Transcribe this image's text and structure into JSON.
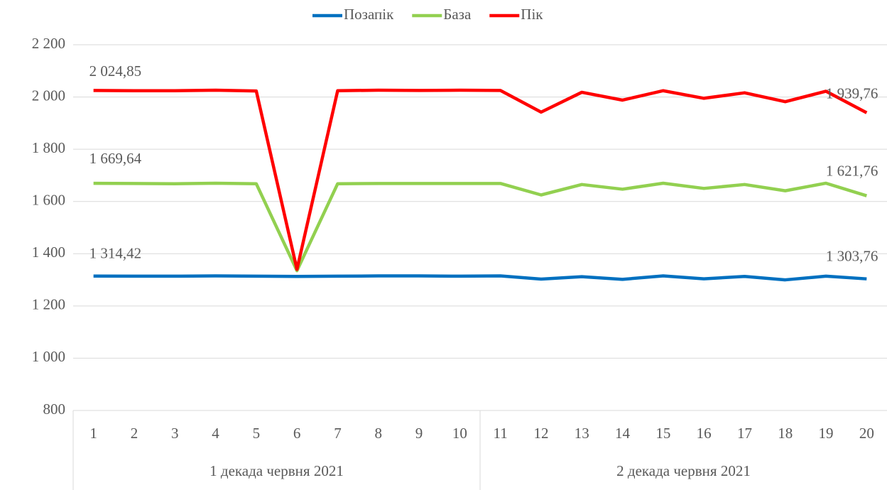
{
  "chart_data": {
    "type": "line",
    "categories": [
      "1",
      "2",
      "3",
      "4",
      "5",
      "6",
      "7",
      "8",
      "9",
      "10",
      "11",
      "12",
      "13",
      "14",
      "15",
      "16",
      "17",
      "18",
      "19",
      "20"
    ],
    "groups": [
      {
        "label": "1 декада червня 2021",
        "count": 10
      },
      {
        "label": "2 декада червня 2021",
        "count": 10
      }
    ],
    "series": [
      {
        "name": "Позапік",
        "color": "#0070c0",
        "values": [
          1314.42,
          1314,
          1314,
          1315,
          1314,
          1313,
          1314,
          1315,
          1315,
          1314,
          1315,
          1303,
          1312,
          1302,
          1315,
          1304,
          1313,
          1300,
          1314,
          1303.76
        ],
        "value_labels": [
          "1 314,42",
          null,
          null,
          null,
          null,
          null,
          null,
          null,
          null,
          null,
          null,
          null,
          null,
          null,
          null,
          null,
          null,
          null,
          null,
          "1 303,76"
        ]
      },
      {
        "name": "База",
        "color": "#92d050",
        "values": [
          1669.64,
          1669,
          1668,
          1670,
          1668,
          1335,
          1668,
          1669,
          1669,
          1669,
          1669,
          1625,
          1665,
          1647,
          1670,
          1650,
          1665,
          1641,
          1670,
          1621.76
        ],
        "value_labels": [
          "1 669,64",
          null,
          null,
          null,
          null,
          null,
          null,
          null,
          null,
          null,
          null,
          null,
          null,
          null,
          null,
          null,
          null,
          null,
          null,
          "1 621,76"
        ]
      },
      {
        "name": "Пік",
        "color": "#ff0000",
        "values": [
          2024.85,
          2024,
          2024,
          2026,
          2023,
          1340,
          2024,
          2026,
          2025,
          2026,
          2025,
          1942,
          2018,
          1988,
          2024,
          1995,
          2016,
          1982,
          2022,
          1939.76
        ],
        "value_labels": [
          "2 024,85",
          null,
          null,
          null,
          null,
          null,
          null,
          null,
          null,
          null,
          null,
          null,
          null,
          null,
          null,
          null,
          null,
          null,
          null,
          "1 939,76"
        ]
      }
    ],
    "ylim": [
      800,
      2200
    ],
    "yticks": [
      800,
      {
        "value": 1000,
        "label": "1 000"
      },
      {
        "value": 1200,
        "label": "1 200"
      },
      {
        "value": 1400,
        "label": "1 400"
      },
      {
        "value": 1600,
        "label": "1 600"
      },
      {
        "value": 1800,
        "label": "1 800"
      },
      {
        "value": 2000,
        "label": "2 000"
      },
      {
        "value": 2200,
        "label": "2 200"
      }
    ],
    "grid": true,
    "legend": "top"
  }
}
